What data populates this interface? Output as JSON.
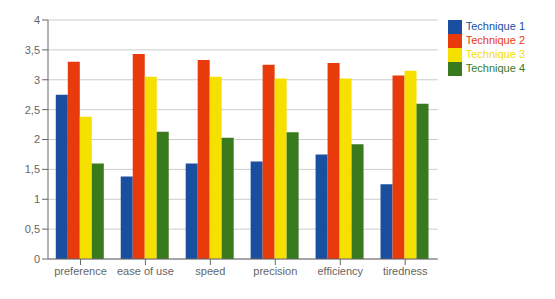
{
  "chart_data": {
    "type": "bar",
    "categories": [
      "preference",
      "ease of use",
      "speed",
      "precision",
      "efficiency",
      "tiredness"
    ],
    "series": [
      {
        "name": "Technique 1",
        "color": "#1a4fa0",
        "values": [
          2.75,
          1.38,
          1.6,
          1.63,
          1.75,
          1.25
        ]
      },
      {
        "name": "Technique 2",
        "color": "#e83a0a",
        "values": [
          3.3,
          3.43,
          3.33,
          3.25,
          3.28,
          3.07
        ]
      },
      {
        "name": "Technique 3",
        "color": "#f5e000",
        "values": [
          2.38,
          3.05,
          3.05,
          3.02,
          3.02,
          3.15
        ]
      },
      {
        "name": "Technique 4",
        "color": "#3a7a1e",
        "values": [
          1.6,
          2.13,
          2.03,
          2.12,
          1.92,
          2.6
        ]
      }
    ],
    "ylim": [
      0,
      4
    ],
    "yticks": [
      0,
      {
        "value": 0.5,
        "label": "0,5"
      },
      1,
      {
        "value": 1.5,
        "label": "1,5"
      },
      2,
      {
        "value": 2.5,
        "label": "2,5"
      },
      3,
      {
        "value": 3.5,
        "label": "3,5"
      },
      4
    ],
    "grid": true,
    "legend": "upper right"
  }
}
